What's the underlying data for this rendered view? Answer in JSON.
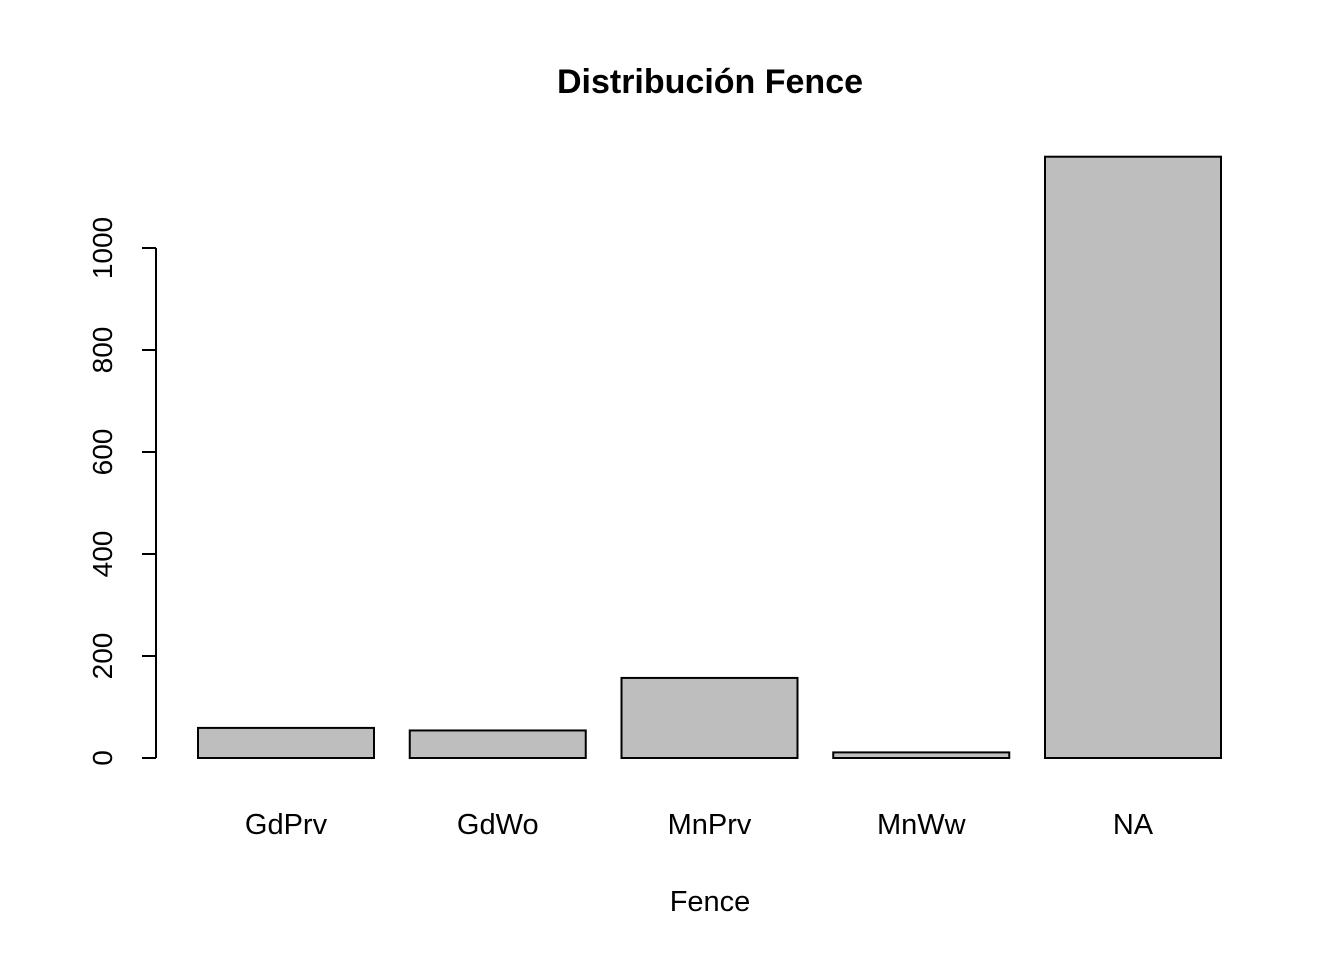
{
  "chart_data": {
    "type": "bar",
    "title": "Distribución Fence",
    "xlabel": "Fence",
    "ylabel": "",
    "categories": [
      "GdPrv",
      "GdWo",
      "MnPrv",
      "MnWw",
      "NA"
    ],
    "values": [
      59,
      54,
      157,
      11,
      1179
    ],
    "y_ticks": [
      0,
      200,
      400,
      600,
      800,
      1000
    ],
    "ylim": [
      0,
      1179
    ],
    "bar_color": "#bebebe",
    "grid": false
  }
}
